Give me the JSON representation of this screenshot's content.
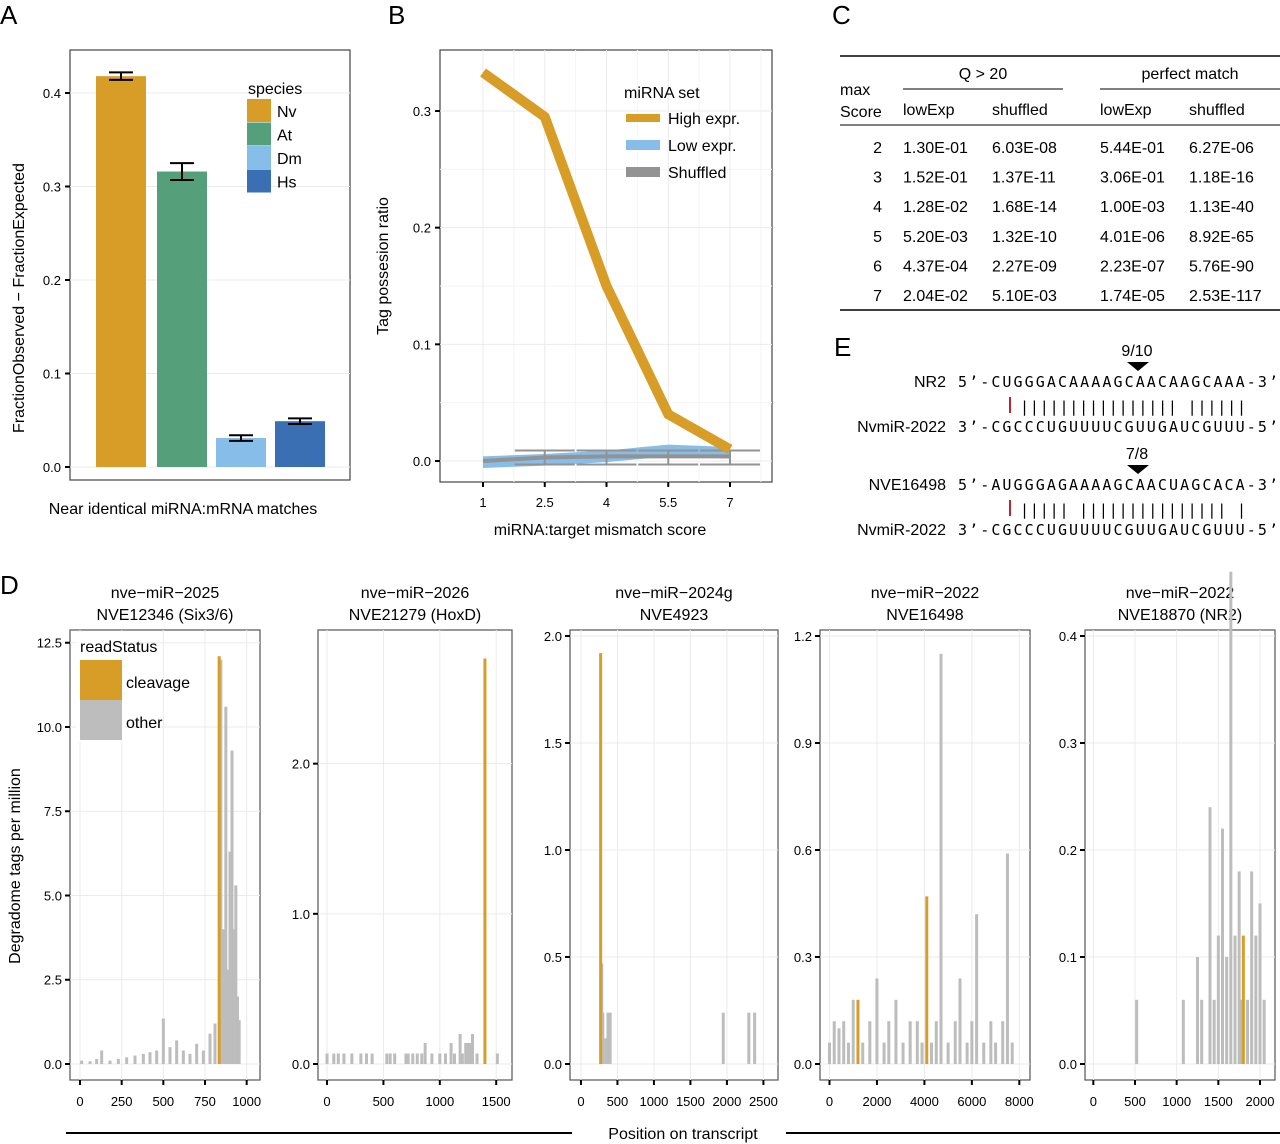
{
  "panel_labels": [
    "A",
    "B",
    "C",
    "D",
    "E"
  ],
  "chart_data": [
    {
      "type": "bar",
      "id": "A",
      "title": "",
      "xlabel": "Near identical miRNA:mRNA matches",
      "ylabel": "FractionObserved − FractionExpected",
      "ylim": [
        0,
        0.43
      ],
      "yticks": [
        "0.0",
        "0.1",
        "0.2",
        "0.3",
        "0.4"
      ],
      "legend_title": "species",
      "legend_position": "top-right",
      "categories": [
        "Nv",
        "At",
        "Dm",
        "Hs"
      ],
      "values": [
        0.418,
        0.316,
        0.031,
        0.049
      ],
      "errors": [
        0.004,
        0.009,
        0.003,
        0.003
      ],
      "colors": [
        "#d79d26",
        "#55a07a",
        "#86bde9",
        "#3a70b3"
      ]
    },
    {
      "type": "line",
      "id": "B",
      "xlabel": "miRNA:target mismatch score",
      "ylabel": "Tag possesion ratio",
      "ylim": [
        -0.018,
        0.35
      ],
      "xlim": [
        0.25,
        8.5
      ],
      "xticks": [
        "1",
        "2.5",
        "4",
        "5.5",
        "7"
      ],
      "yticks": [
        "0.0",
        "0.1",
        "0.2",
        "0.3"
      ],
      "legend_title": "miRNA set",
      "legend_position": "top-right",
      "x": [
        1,
        2.5,
        4,
        5.5,
        7
      ],
      "series": [
        {
          "name": "High expr.",
          "color": "#d79d26",
          "values": [
            0.333,
            0.295,
            0.15,
            0.04,
            0.01
          ]
        },
        {
          "name": "Low expr.",
          "color": "#86bde9",
          "values": [
            0.0,
            0.002,
            0.005,
            0.01,
            0.008
          ]
        },
        {
          "name": "Shuffled",
          "color": "#939393",
          "values": [
            0.0,
            0.003,
            0.004,
            0.004,
            0.004
          ]
        }
      ]
    },
    {
      "type": "table",
      "id": "C",
      "group_headers": [
        "Q > 20",
        "perfect match"
      ],
      "row_header": [
        "max",
        "Score"
      ],
      "columns": [
        "lowExp",
        "shuffled",
        "lowExp",
        "shuffled"
      ],
      "rows": [
        [
          "2",
          "1.30E-01",
          "6.03E-08",
          "5.44E-01",
          "6.27E-06"
        ],
        [
          "3",
          "1.52E-01",
          "1.37E-11",
          "3.06E-01",
          "1.18E-16"
        ],
        [
          "4",
          "1.28E-02",
          "1.68E-14",
          "1.00E-03",
          "1.13E-40"
        ],
        [
          "5",
          "5.20E-03",
          "1.32E-10",
          "4.01E-06",
          "8.92E-65"
        ],
        [
          "6",
          "4.37E-04",
          "2.27E-09",
          "2.23E-07",
          "5.76E-90"
        ],
        [
          "7",
          "2.04E-02",
          "5.10E-03",
          "1.74E-05",
          "2.53E-117"
        ]
      ]
    },
    {
      "type": "bar",
      "id": "D",
      "xlabel": "Position on transcript",
      "ylabel": "Degradome tags per million",
      "legend_title": "readStatus",
      "legend": [
        {
          "name": "cleavage",
          "color": "#d79d26"
        },
        {
          "name": "other",
          "color": "#bdbdbd"
        }
      ],
      "facets": [
        {
          "title": [
            "nve−miR−2025",
            "NVE12346 (Six3/6)"
          ],
          "xlim": [
            -60,
            1080
          ],
          "ylim": [
            0,
            12.7
          ],
          "xticks": [
            0,
            250,
            500,
            750,
            1000
          ],
          "yticks": [
            0,
            2.5,
            5,
            7.5,
            10,
            12.5
          ],
          "ytick_labels": [
            "0.0",
            "2.5",
            "5.0",
            "7.5",
            "10.0",
            "12.5"
          ],
          "cleavage": [
            [
              835,
              12.1
            ]
          ],
          "other": [
            [
              10,
              0.1
            ],
            [
              60,
              0.08
            ],
            [
              100,
              0.15
            ],
            [
              130,
              0.4
            ],
            [
              180,
              0.1
            ],
            [
              230,
              0.15
            ],
            [
              280,
              0.2
            ],
            [
              330,
              0.25
            ],
            [
              380,
              0.3
            ],
            [
              420,
              0.35
            ],
            [
              460,
              0.4
            ],
            [
              500,
              1.35
            ],
            [
              540,
              0.5
            ],
            [
              580,
              0.7
            ],
            [
              620,
              0.4
            ],
            [
              660,
              0.3
            ],
            [
              700,
              0.6
            ],
            [
              740,
              0.4
            ],
            [
              780,
              0.9
            ],
            [
              810,
              1.2
            ],
            [
              845,
              12.0
            ],
            [
              860,
              4.0
            ],
            [
              875,
              10.6
            ],
            [
              890,
              2.8
            ],
            [
              900,
              6.3
            ],
            [
              912,
              9.3
            ],
            [
              922,
              4.0
            ],
            [
              935,
              5.3
            ],
            [
              945,
              2.0
            ],
            [
              955,
              1.3
            ]
          ]
        },
        {
          "title": [
            "nve−miR−2026",
            "NVE21279 (HoxD)"
          ],
          "xlim": [
            -80,
            1640
          ],
          "ylim": [
            0,
            2.85
          ],
          "xticks": [
            0,
            500,
            1000,
            1500
          ],
          "yticks": [
            0,
            1,
            2
          ],
          "ytick_labels": [
            "0.0",
            "1.0",
            "2.0"
          ],
          "cleavage": [
            [
              1400,
              2.7
            ]
          ],
          "other": [
            [
              0,
              0.07
            ],
            [
              60,
              0.07
            ],
            [
              100,
              0.07
            ],
            [
              150,
              0.07
            ],
            [
              220,
              0.07
            ],
            [
              300,
              0.07
            ],
            [
              350,
              0.07
            ],
            [
              400,
              0.07
            ],
            [
              530,
              0.07
            ],
            [
              560,
              0.07
            ],
            [
              600,
              0.07
            ],
            [
              700,
              0.07
            ],
            [
              720,
              0.07
            ],
            [
              760,
              0.07
            ],
            [
              800,
              0.07
            ],
            [
              840,
              0.07
            ],
            [
              870,
              0.14
            ],
            [
              930,
              0.07
            ],
            [
              1000,
              0.07
            ],
            [
              1050,
              0.07
            ],
            [
              1100,
              0.14
            ],
            [
              1130,
              0.07
            ],
            [
              1180,
              0.2
            ],
            [
              1200,
              0.07
            ],
            [
              1230,
              0.14
            ],
            [
              1250,
              0.14
            ],
            [
              1270,
              0.14
            ],
            [
              1290,
              0.2
            ],
            [
              1330,
              0.07
            ],
            [
              1510,
              0.07
            ]
          ]
        },
        {
          "title": [
            "nve−miR−2024g",
            "NVE4923"
          ],
          "xlim": [
            -150,
            2700
          ],
          "ylim": [
            0,
            2.0
          ],
          "xticks": [
            0,
            500,
            1000,
            1500,
            2000,
            2500
          ],
          "yticks": [
            0,
            0.5,
            1,
            1.5,
            2
          ],
          "ytick_labels": [
            "0.0",
            "0.5",
            "1.0",
            "1.5",
            "2.0"
          ],
          "cleavage": [
            [
              270,
              1.92
            ]
          ],
          "other": [
            [
              285,
              0.47
            ],
            [
              300,
              0.24
            ],
            [
              340,
              0.12
            ],
            [
              370,
              0.24
            ],
            [
              400,
              0.24
            ],
            [
              1950,
              0.24
            ],
            [
              2300,
              0.24
            ],
            [
              2380,
              0.24
            ]
          ]
        },
        {
          "title": [
            "nve−miR−2022",
            "NVE16498"
          ],
          "xlim": [
            -400,
            8450
          ],
          "ylim": [
            0,
            1.2
          ],
          "xticks": [
            0,
            2000,
            4000,
            6000,
            8000
          ],
          "yticks": [
            0,
            0.3,
            0.6,
            0.9,
            1.2
          ],
          "ytick_labels": [
            "0.0",
            "0.3",
            "0.6",
            "0.9",
            "1.2"
          ],
          "cleavage": [
            [
              1200,
              0.18
            ],
            [
              4100,
              0.47
            ]
          ],
          "other": [
            [
              0,
              0.06
            ],
            [
              200,
              0.12
            ],
            [
              400,
              0.1
            ],
            [
              600,
              0.12
            ],
            [
              800,
              0.06
            ],
            [
              1000,
              0.18
            ],
            [
              1400,
              0.06
            ],
            [
              1700,
              0.12
            ],
            [
              2000,
              0.24
            ],
            [
              2300,
              0.06
            ],
            [
              2500,
              0.12
            ],
            [
              2800,
              0.18
            ],
            [
              3100,
              0.06
            ],
            [
              3400,
              0.12
            ],
            [
              3700,
              0.12
            ],
            [
              3900,
              0.06
            ],
            [
              4300,
              0.06
            ],
            [
              4500,
              0.12
            ],
            [
              4700,
              1.15
            ],
            [
              5000,
              0.06
            ],
            [
              5300,
              0.12
            ],
            [
              5500,
              0.24
            ],
            [
              5800,
              0.06
            ],
            [
              6000,
              0.12
            ],
            [
              6200,
              0.42
            ],
            [
              6500,
              0.06
            ],
            [
              6800,
              0.12
            ],
            [
              7000,
              0.06
            ],
            [
              7300,
              0.12
            ],
            [
              7500,
              0.59
            ],
            [
              7700,
              0.06
            ]
          ]
        },
        {
          "title": [
            "nve−miR−2022",
            "NVE18870 (NR2)"
          ],
          "xlim": [
            -100,
            2180
          ],
          "ylim": [
            0,
            0.4
          ],
          "xticks": [
            0,
            500,
            1000,
            1500,
            2000
          ],
          "yticks": [
            0,
            0.1,
            0.2,
            0.3,
            0.4
          ],
          "ytick_labels": [
            "0.0",
            "0.1",
            "0.2",
            "0.3",
            "0.4"
          ],
          "cleavage": [
            [
              1800,
              0.12
            ]
          ],
          "other": [
            [
              520,
              0.06
            ],
            [
              1080,
              0.06
            ],
            [
              1250,
              0.1
            ],
            [
              1300,
              0.06
            ],
            [
              1400,
              0.24
            ],
            [
              1450,
              0.06
            ],
            [
              1500,
              0.12
            ],
            [
              1550,
              0.22
            ],
            [
              1600,
              0.1
            ],
            [
              1650,
              0.46
            ],
            [
              1700,
              0.12
            ],
            [
              1750,
              0.18
            ],
            [
              1780,
              0.06
            ],
            [
              1850,
              0.06
            ],
            [
              1900,
              0.18
            ],
            [
              1950,
              0.12
            ],
            [
              2000,
              0.15
            ],
            [
              2050,
              0.06
            ]
          ]
        }
      ]
    }
  ],
  "panel_e": {
    "pairs": [
      {
        "site": "9/10",
        "target_name": "NR2",
        "target_seq": "5’-CUGGGACAAAAGCAACAAGCAAA-3’",
        "mirna_name": "NvmiR-2022",
        "mirna_seq": "3’-CGCCCUGUUUUCGUUGAUCGUUU-5’",
        "bonds": "|||||||||||||||| ||||||"
      },
      {
        "site": "7/8",
        "target_name": "NVE16498",
        "target_seq": "5’-AUGGGAGAAAAGCAACUAGCACA-3’",
        "mirna_name": "NvmiR-2022",
        "mirna_seq": "3’-CGCCCUGUUUUCGUUGAUCGUUU-5’",
        "bonds": "|||||  |||||||||||||||  |"
      }
    ]
  }
}
